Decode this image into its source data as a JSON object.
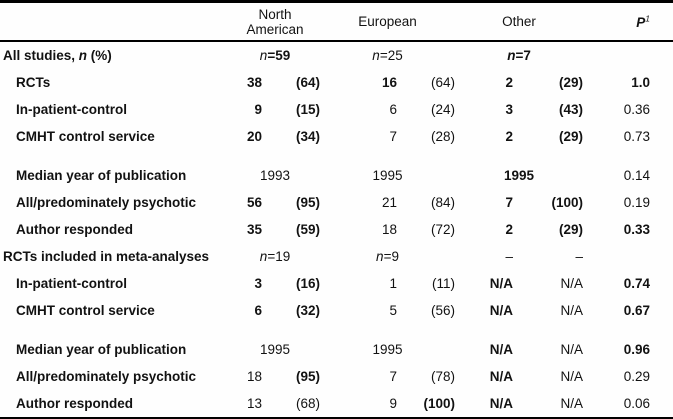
{
  "header": {
    "regions": [
      "North American",
      "European",
      "Other"
    ],
    "p_label": "P",
    "p_sup": "1"
  },
  "rows": [
    {
      "label_pre": "All studies, ",
      "label_it": "n",
      "label_post": " (%)",
      "na_it": "n",
      "na_val": "=59",
      "eu_it": "n",
      "eu_val": "=25",
      "ot_it": "n",
      "ot_val": "=7",
      "p": ""
    },
    {
      "label": "RCTs",
      "na_n": "38",
      "na_pct": "(64)",
      "eu_n": "16",
      "eu_pct": "(64)",
      "ot_n": "2",
      "ot_pct": "(29)",
      "p": "1.0"
    },
    {
      "label": "In-patient-control",
      "na_n": "9",
      "na_pct": "(15)",
      "eu_n": "6",
      "eu_pct": "(24)",
      "ot_n": "3",
      "ot_pct": "(43)",
      "p": "0.36"
    },
    {
      "label": "CMHT control service",
      "na_n": "20",
      "na_pct": "(34)",
      "eu_n": "7",
      "eu_pct": "(28)",
      "ot_n": "2",
      "ot_pct": "(29)",
      "p": "0.73"
    },
    {
      "label": "Median year of publication",
      "na_span": "1993",
      "eu_span": "1995",
      "ot_span": "1995",
      "p": "0.14"
    },
    {
      "label": "All/predominately psychotic",
      "na_n": "56",
      "na_pct": "(95)",
      "eu_n": "21",
      "eu_pct": "(84)",
      "ot_n": "7",
      "ot_pct": "(100)",
      "p": "0.19"
    },
    {
      "label": "Author responded",
      "na_n": "35",
      "na_pct": "(59)",
      "eu_n": "18",
      "eu_pct": "(72)",
      "ot_n": "2",
      "ot_pct": "(29)",
      "p": "0.33"
    },
    {
      "label": "RCTs included in meta-analyses",
      "na_it": "n",
      "na_val": "=19",
      "eu_it": "n",
      "eu_val": "=9",
      "ot_n": "–",
      "ot_pct": "–",
      "p": ""
    },
    {
      "label": "In-patient-control",
      "na_n": "3",
      "na_pct": "(16)",
      "eu_n": "1",
      "eu_pct": "(11)",
      "ot_n": "N/A",
      "ot_pct": "N/A",
      "p": "0.74"
    },
    {
      "label": "CMHT control service",
      "na_n": "6",
      "na_pct": "(32)",
      "eu_n": "5",
      "eu_pct": "(56)",
      "ot_n": "N/A",
      "ot_pct": "N/A",
      "p": "0.67"
    },
    {
      "label": "Median year of publication",
      "na_span": "1995",
      "eu_span": "1995",
      "ot_n": "N/A",
      "ot_pct": "N/A",
      "p": "0.96"
    },
    {
      "label": "All/predominately psychotic",
      "na_n": "18",
      "na_pct": "(95)",
      "eu_n": "7",
      "eu_pct": "(78)",
      "ot_n": "N/A",
      "ot_pct": "N/A",
      "p": "0.29"
    },
    {
      "label": "Author responded",
      "na_n": "13",
      "na_pct": "(68)",
      "eu_n": "9",
      "eu_pct": "(100)",
      "ot_n": "N/A",
      "ot_pct": "N/A",
      "p": "0.06"
    }
  ]
}
